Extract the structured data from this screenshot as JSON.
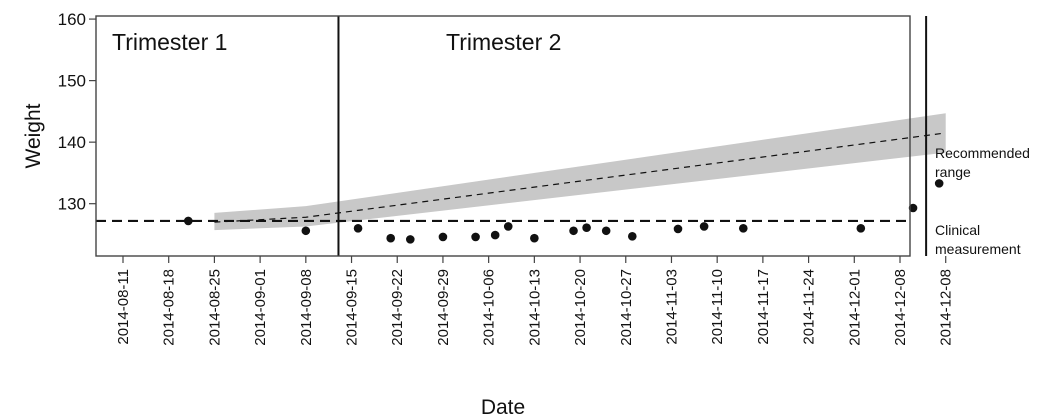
{
  "chart_data": {
    "type": "scatter",
    "xlabel": "Date",
    "ylabel": "Weight",
    "ylim": [
      121.5,
      160.5
    ],
    "yticks": [
      130,
      140,
      150,
      160
    ],
    "x_tick_labels": [
      "2014-08-11",
      "2014-08-18",
      "2014-08-25",
      "2014-09-01",
      "2014-09-08",
      "2014-09-15",
      "2014-09-22",
      "2014-09-29",
      "2014-10-06",
      "2014-10-13",
      "2014-10-20",
      "2014-10-27",
      "2014-11-03",
      "2014-11-10",
      "2014-11-17",
      "2014-11-24",
      "2014-12-01",
      "2014-12-08",
      "2014-12-08"
    ],
    "panel_labels": [
      "Trimester 1",
      "Trimester 2"
    ],
    "trimester_boundaries": [
      "2014-09-13",
      "2014-12-12"
    ],
    "clinical_measurement": 127.2,
    "annotations": {
      "recommended": "Recommended range",
      "clinical": "Clinical measurement"
    },
    "recommended_range": {
      "x": [
        "2014-08-25",
        "2014-09-08",
        "2014-12-15"
      ],
      "center": [
        127.0,
        127.8,
        141.5
      ],
      "lower": [
        125.7,
        126.3,
        138.3
      ],
      "upper": [
        128.5,
        129.6,
        144.7
      ]
    },
    "points": {
      "x": [
        "2014-08-21",
        "2014-09-08",
        "2014-09-16",
        "2014-09-21",
        "2014-09-24",
        "2014-09-29",
        "2014-10-04",
        "2014-10-07",
        "2014-10-09",
        "2014-10-13",
        "2014-10-19",
        "2014-10-21",
        "2014-10-24",
        "2014-10-28",
        "2014-11-04",
        "2014-11-08",
        "2014-11-14",
        "2014-12-02",
        "2014-12-10",
        "2014-12-14"
      ],
      "y": [
        127.2,
        125.6,
        126.0,
        124.4,
        124.2,
        124.6,
        124.6,
        124.9,
        126.3,
        124.4,
        125.6,
        126.1,
        125.6,
        124.7,
        125.9,
        126.3,
        126.0,
        126.0,
        129.3,
        133.3
      ]
    }
  }
}
